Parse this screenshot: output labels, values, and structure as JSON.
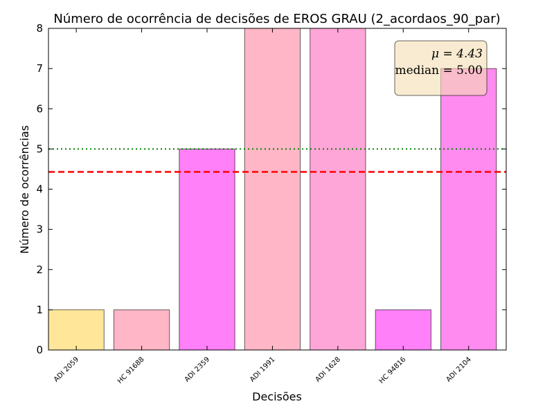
{
  "chart_data": {
    "type": "bar",
    "title": "Número de ocorrência de decisões de EROS GRAU (2_acordaos_90_par)",
    "xlabel": "Decisões",
    "ylabel": "Número de ocorrências",
    "categories": [
      "ADI 2059",
      "HC 91688",
      "ADI 2359",
      "ADI 1991",
      "ADI 1628",
      "HC 94816",
      "ADI 2104"
    ],
    "values": [
      1,
      1,
      5,
      8,
      8,
      1,
      7
    ],
    "bar_colors": [
      "#ffe699",
      "#ffb6c6",
      "#ff80f8",
      "#ffb6c6",
      "#ffa6d8",
      "#ff80f8",
      "#ff8af0"
    ],
    "ylim": [
      0,
      8
    ],
    "yticks": [
      0,
      1,
      2,
      3,
      4,
      5,
      6,
      7,
      8
    ],
    "grid": false,
    "reference_lines": [
      {
        "value": 4.43,
        "style": "dashed",
        "color": "#ff0000"
      },
      {
        "value": 5.0,
        "style": "dotted",
        "color": "#008000"
      }
    ],
    "stats_box": {
      "mean_line": "μ = 4.43",
      "median_line": "median = 5.00",
      "placement": "top-right",
      "background": "#f5deb3"
    }
  }
}
